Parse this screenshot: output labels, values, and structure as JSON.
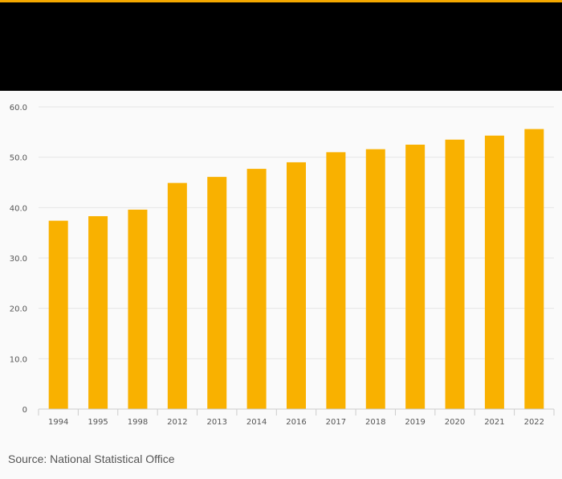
{
  "colors": {
    "accent": "#f5a800",
    "header_background": "#000000",
    "bar": "#f9b100",
    "gridline": "#e6e6e6",
    "axis": "#cccccc",
    "tick_text": "#555555"
  },
  "footer": {
    "source": "Source: National Statistical Office"
  },
  "chart_data": {
    "type": "bar",
    "title": "",
    "xlabel": "",
    "ylabel": "",
    "categories": [
      "1994",
      "1995",
      "1998",
      "2012",
      "2013",
      "2014",
      "2016",
      "2017",
      "2018",
      "2019",
      "2020",
      "2021",
      "2022"
    ],
    "values": [
      37.4,
      38.3,
      39.6,
      44.9,
      46.1,
      47.7,
      49.0,
      51.0,
      51.6,
      52.5,
      53.5,
      54.3,
      55.6
    ],
    "ylim": [
      0,
      60
    ],
    "yticks": [
      "0",
      "10.0",
      "20.0",
      "30.0",
      "40.0",
      "50.0",
      "60.0"
    ],
    "ytick_values": [
      0,
      10,
      20,
      30,
      40,
      50,
      60
    ],
    "grid": true,
    "legend": "none"
  }
}
